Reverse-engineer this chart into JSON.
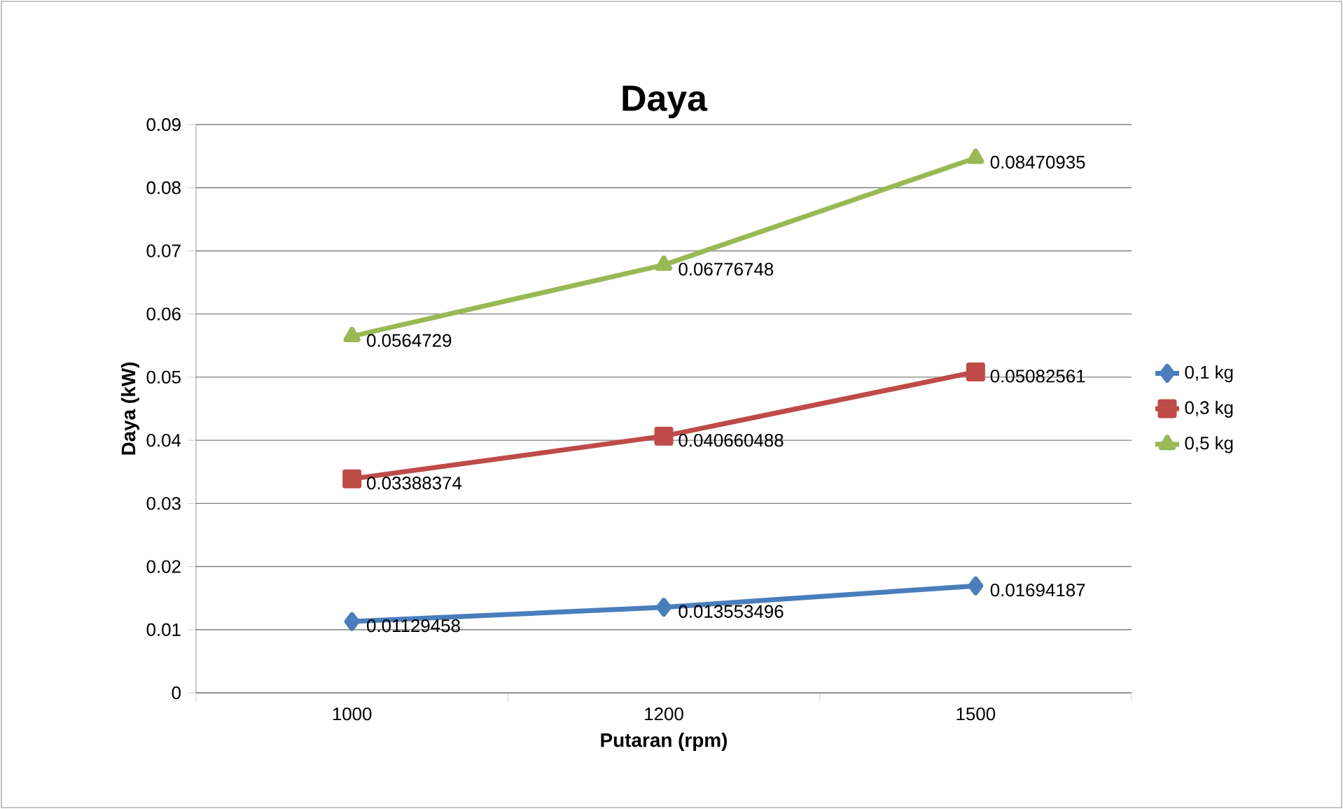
{
  "chart_data": {
    "type": "line",
    "title": "Daya",
    "xlabel": "Putaran (rpm)",
    "ylabel": "Daya (kW)",
    "categories": [
      "1000",
      "1200",
      "1500"
    ],
    "series": [
      {
        "name": "0,1 kg",
        "color": "#4a7ebb",
        "marker": "diamond",
        "values": [
          0.01129458,
          0.013553496,
          0.01694187
        ]
      },
      {
        "name": "0,3 kg",
        "color": "#be4b48",
        "marker": "square",
        "values": [
          0.03388374,
          0.040660488,
          0.05082561
        ]
      },
      {
        "name": "0,5 kg",
        "color": "#98b954",
        "marker": "triangle",
        "values": [
          0.0564729,
          0.06776748,
          0.08470935
        ]
      }
    ],
    "ylim": [
      0,
      0.09
    ],
    "yticks": [
      0,
      0.01,
      0.02,
      0.03,
      0.04,
      0.05,
      0.06,
      0.07,
      0.08,
      0.09
    ],
    "grid": "y",
    "legend": "right",
    "data_labels": true
  }
}
